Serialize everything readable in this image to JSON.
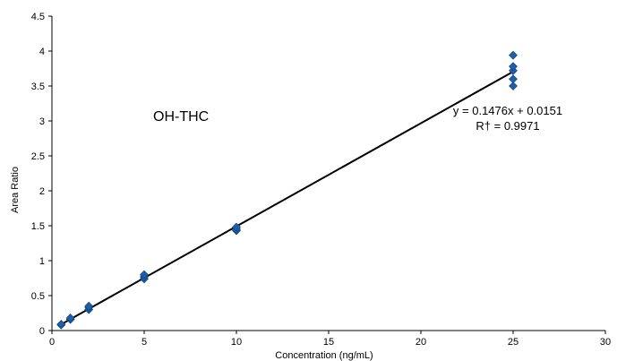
{
  "chart_data": {
    "type": "scatter",
    "title": "",
    "xlabel": "Concentration (ng/mL)",
    "ylabel": "Area Ratio",
    "xlim": [
      0,
      30
    ],
    "ylim": [
      0,
      4.5
    ],
    "xticks": [
      0,
      5,
      10,
      15,
      20,
      25,
      30
    ],
    "yticks": [
      0,
      0.5,
      1,
      1.5,
      2,
      2.5,
      3,
      3.5,
      4,
      4.5
    ],
    "grid": false,
    "marker_color": "#1f5fa8",
    "line_color": "#000000",
    "series": [
      {
        "points": [
          {
            "x": 0.5,
            "y": 0.08
          },
          {
            "x": 0.5,
            "y": 0.09
          },
          {
            "x": 1,
            "y": 0.16
          },
          {
            "x": 1,
            "y": 0.18
          },
          {
            "x": 2,
            "y": 0.3
          },
          {
            "x": 2,
            "y": 0.33
          },
          {
            "x": 2,
            "y": 0.35
          },
          {
            "x": 5,
            "y": 0.74
          },
          {
            "x": 5,
            "y": 0.77
          },
          {
            "x": 5,
            "y": 0.8
          },
          {
            "x": 10,
            "y": 1.43
          },
          {
            "x": 10,
            "y": 1.45
          },
          {
            "x": 10,
            "y": 1.48
          },
          {
            "x": 25,
            "y": 3.5
          },
          {
            "x": 25,
            "y": 3.6
          },
          {
            "x": 25,
            "y": 3.72
          },
          {
            "x": 25,
            "y": 3.78
          },
          {
            "x": 25,
            "y": 3.94
          }
        ]
      }
    ],
    "trendline": {
      "slope": 0.1476,
      "intercept": 0.0151,
      "x_range": [
        0.5,
        25
      ]
    },
    "annotations": {
      "compound": "OH-THC",
      "equation": "y = 0.1476x + 0.0151",
      "r_squared": "R† = 0.9971"
    }
  }
}
